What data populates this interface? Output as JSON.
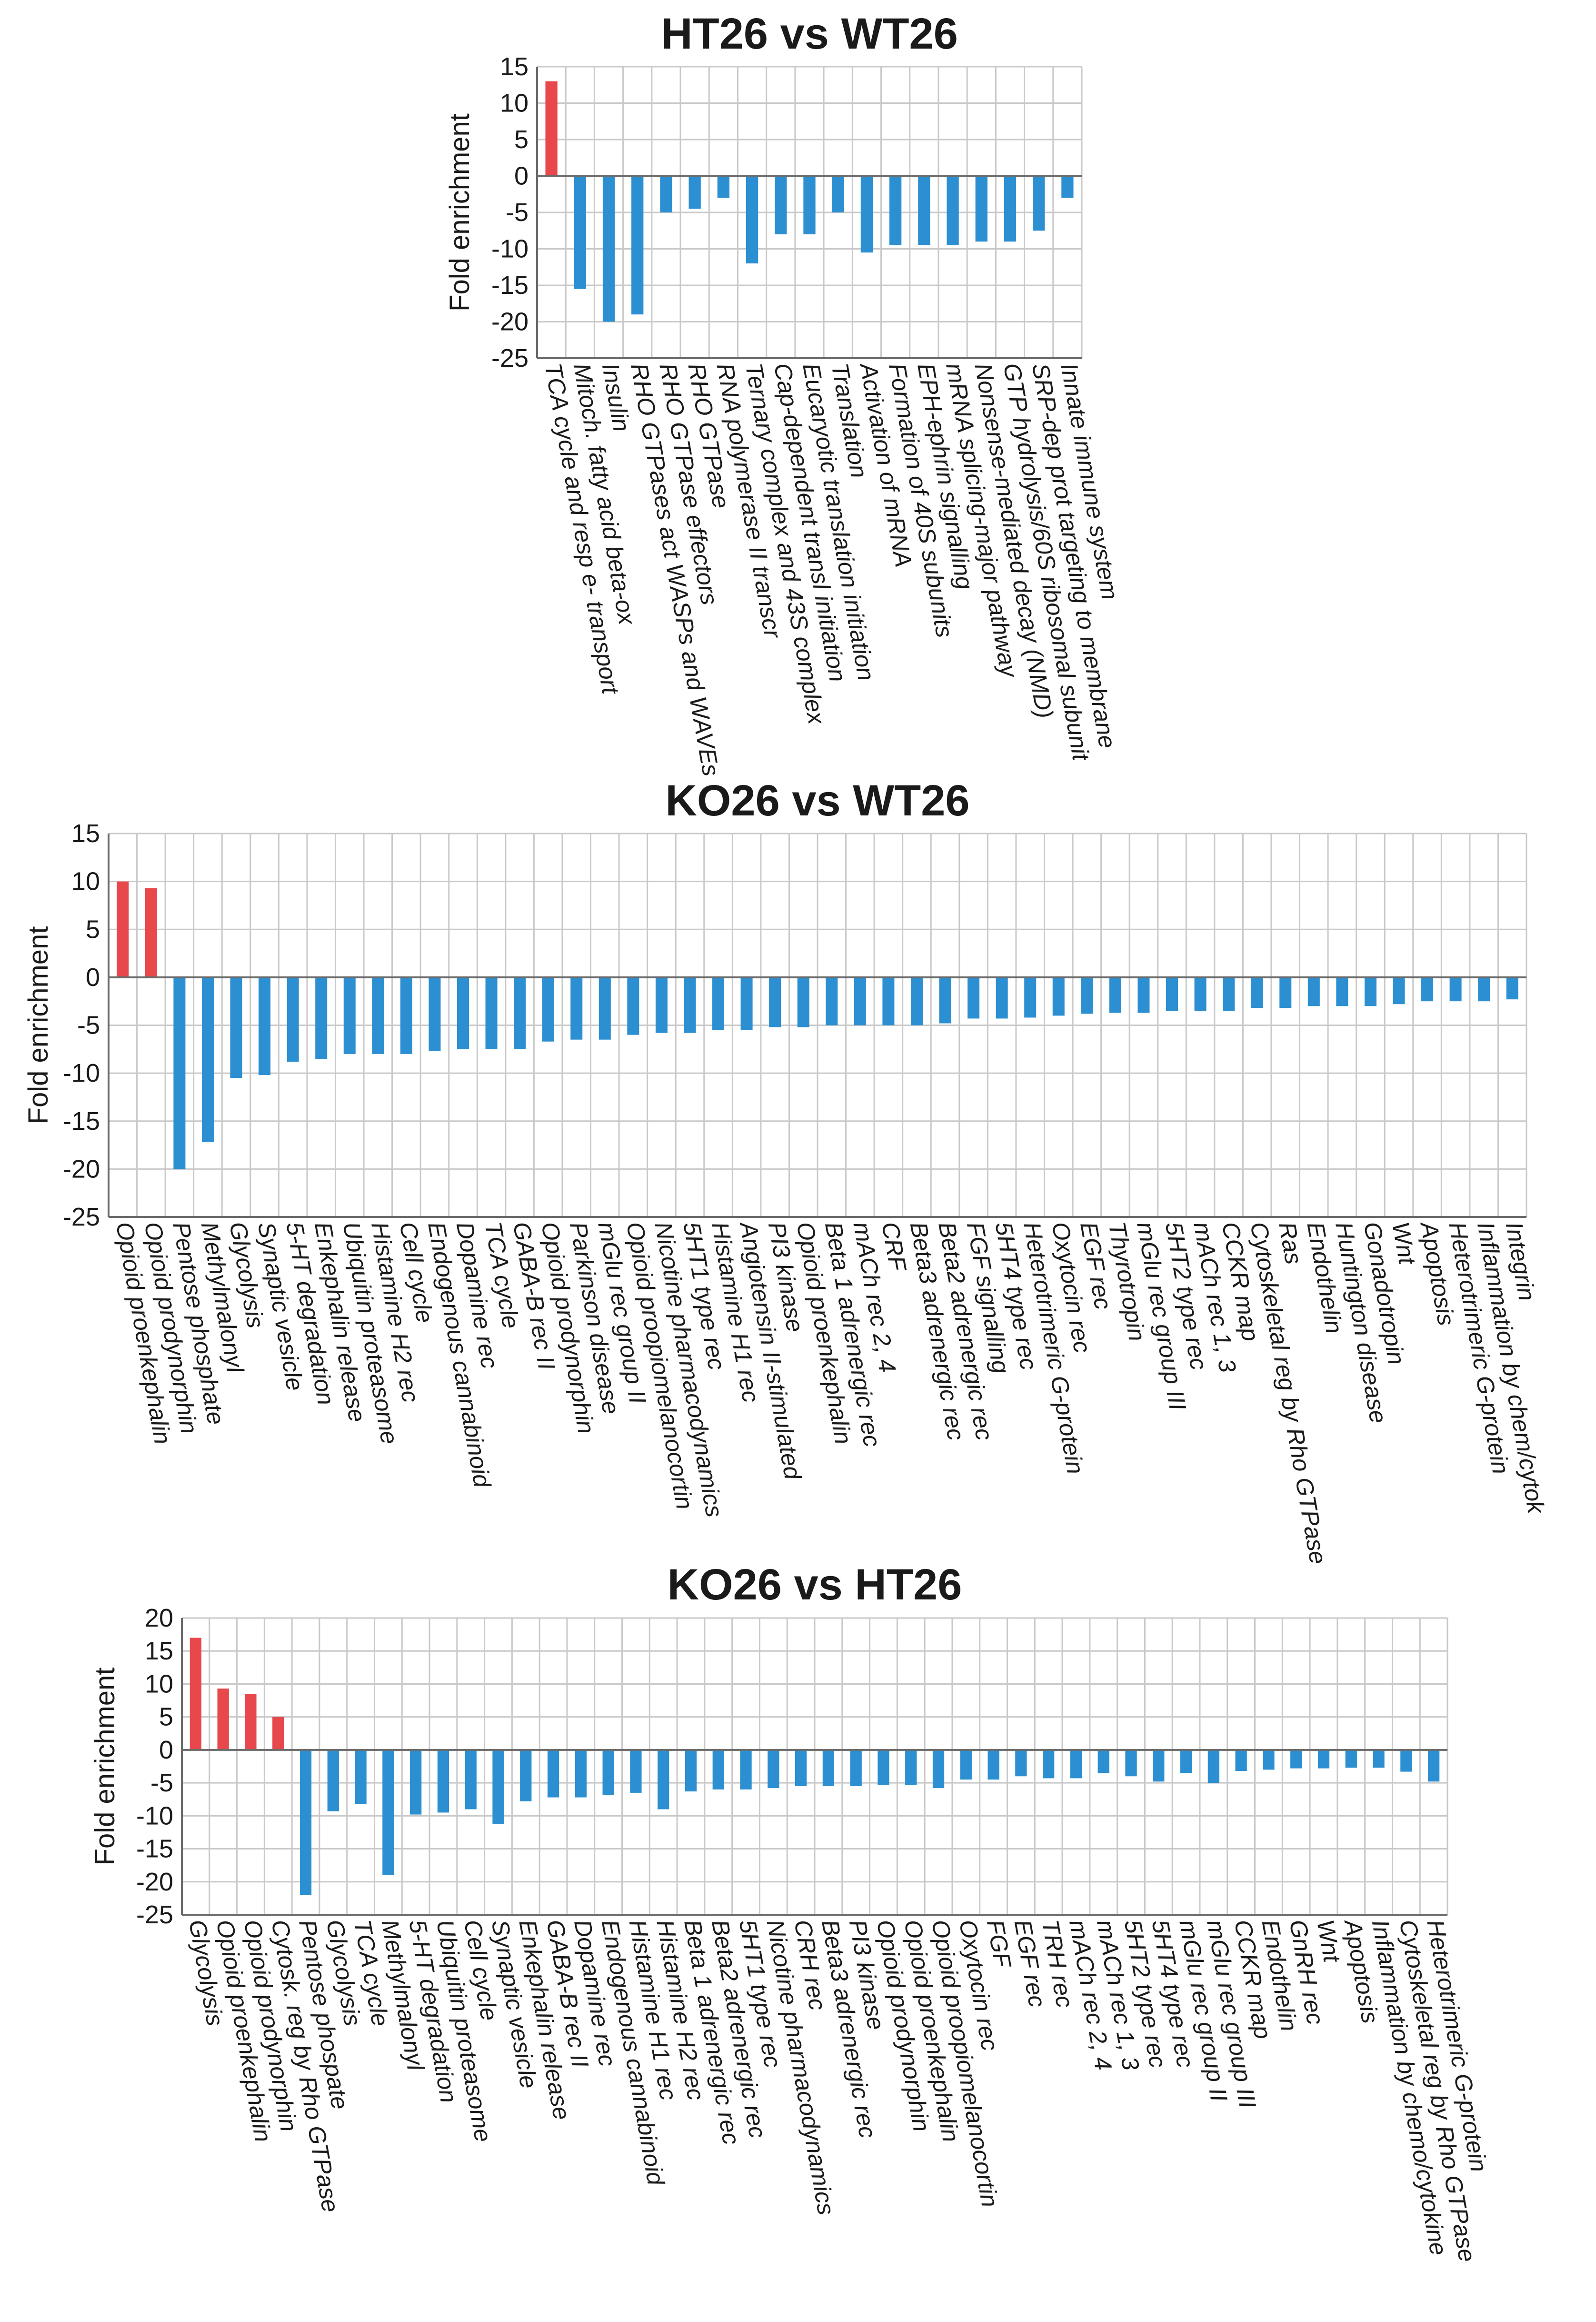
{
  "chart_data": [
    {
      "type": "bar",
      "title": "HT26 vs WT26",
      "ylabel": "Fold enrichment",
      "xlabel": "",
      "ylim": [
        -25,
        15
      ],
      "yticks": [
        15,
        10,
        5,
        0,
        -5,
        -10,
        -15,
        -20,
        -25
      ],
      "categories": [
        "TCA cycle and resp e- transport",
        "Mitoch. fatty acid beta-ox",
        "Insulin",
        "RHO GTPases act WASPs and WAVEs",
        "RHO GTPase effectors",
        "RHO GTPase",
        "RNA polymerase II transcr",
        "Ternary complex and 43S complex",
        "Cap-dependent transl initiation",
        "Eucaryotic translation initiation",
        "Translation",
        "Activation of mRNA",
        "Formation of 40S subunits",
        "EPH-ephrin signalling",
        "mRNA splicing-major pathway",
        "Nonsense-mediated decay (NMD)",
        "GTP hydrolysis/60S ribosomal subunit",
        "SRP-dep prot targeting to membrane",
        "Innate immune system"
      ],
      "values": [
        13,
        -15.5,
        -20,
        -19,
        -5,
        -4.5,
        -3,
        -12,
        -8,
        -8,
        -5,
        -10.5,
        -9.5,
        -9.5,
        -9.5,
        -9,
        -9,
        -7.5,
        -3
      ],
      "colors": {
        "positive": "#e8474c",
        "negative": "#2b8fd1"
      }
    },
    {
      "type": "bar",
      "title": "KO26 vs WT26",
      "ylabel": "Fold enrichment",
      "xlabel": "",
      "ylim": [
        -25,
        15
      ],
      "yticks": [
        15,
        10,
        5,
        0,
        -5,
        -10,
        -15,
        -20,
        -25
      ],
      "categories": [
        "Opioid proenkephalin",
        "Opioid prodynorphin",
        "Pentose phosphate",
        "Methylmalonyl",
        "Glycolysis",
        "Synaptic vesicle",
        "5-HT degradation",
        "Enkephalin release",
        "Ubiquitin proteasome",
        "Histamine H2 rec",
        "Cell cycle",
        "Endogenous cannabinoid",
        "Dopamine rec",
        "TCA cycle",
        "GABA-B rec II",
        "Opioid prodynorphin",
        "Parkinson disease",
        "mGlu rec group II",
        "Opioid proopiomelanocortin",
        "Nicotine pharmacodynamics",
        "5HT1 type rec",
        "Histamine H1 rec",
        "Angiotensin II-stimulated",
        "PI3 kinase",
        "Opioid proenkephalin",
        "Beta 1 adrenergic rec",
        "mACh rec 2, 4",
        "CRF",
        "Beta3 adrenergic rec",
        "Beta2 adrenergic rec",
        "FGF signalling",
        "5HT4 type rec",
        "Heterotrimeric G-protein",
        "Oxytocin rec",
        "EGF rec",
        "Thyrotropin",
        "mGlu rec group III",
        "5HT2 type rec",
        "mACh rec 1, 3",
        "CCKR map",
        "Cytoskeletal reg by Rho GTPase",
        "Ras",
        "Endothelin",
        "Huntington disease",
        "Gonadotropin",
        "Wnt",
        "Apoptosis",
        "Heterotrimeric G-protein",
        "Inflammation by chem/cytok",
        "Integrin"
      ],
      "values": [
        10,
        9.3,
        -20,
        -17.2,
        -10.5,
        -10.2,
        -8.8,
        -8.5,
        -8,
        -8,
        -8,
        -7.7,
        -7.5,
        -7.5,
        -7.5,
        -6.7,
        -6.5,
        -6.5,
        -6,
        -5.8,
        -5.8,
        -5.5,
        -5.5,
        -5.2,
        -5.2,
        -5,
        -5,
        -5,
        -5,
        -4.8,
        -4.3,
        -4.3,
        -4.2,
        -4,
        -3.8,
        -3.7,
        -3.7,
        -3.5,
        -3.5,
        -3.5,
        -3.2,
        -3.2,
        -3,
        -3,
        -3,
        -2.8,
        -2.5,
        -2.5,
        -2.5,
        -2.3
      ],
      "colors": {
        "positive": "#e8474c",
        "negative": "#2b8fd1"
      }
    },
    {
      "type": "bar",
      "title": "KO26 vs HT26",
      "ylabel": "Fold enrichment",
      "xlabel": "",
      "ylim": [
        -25,
        20
      ],
      "yticks": [
        20,
        15,
        10,
        5,
        0,
        -5,
        -10,
        -15,
        -20,
        -25
      ],
      "categories": [
        "Glycolysis",
        "Opioid proenkephalin",
        "Opioid prodynorphin",
        "Cytosk. reg by Rho GTPase",
        "Pentose phospate",
        "Glycolysis",
        "TCA cycle",
        "Methylmalonyl",
        "5-HT degradation",
        "Ubiquitin proteasome",
        "Cell cycle",
        "Synaptic vesicle",
        "Enkephalin release",
        "GABA-B rec II",
        "Dopamine rec",
        "Endogenous cannabinoid",
        "Histamine H1 rec",
        "Histamine H2 rec",
        "Beta 1 adrenergic rec",
        "Beta2 adrenergic rec",
        "5HT1 type rec",
        "Nicotine pharmacodynamics",
        "CRH rec",
        "Beta3 adrenergic rec",
        "PI3 kinase",
        "Opioid prodynorphin",
        "Opioid proenkephalin",
        "Opioid proopiomelanocortin",
        "Oxytocin rec",
        "FGF",
        "EGF rec",
        "TRH rec",
        "mACh rec 2, 4",
        "mACh rec 1, 3",
        "5HT2 type rec",
        "5HT4 type rec",
        "mGlu rec group II",
        "mGlu rec group III",
        "CCKR map",
        "Endothelin",
        "GnRH rec",
        "Wnt",
        "Apoptosis",
        "Inflammation by chemo/cytokine",
        "Cytoskeletal reg by Rho GTPase",
        "Heterotrimeric G-protein"
      ],
      "values": [
        17,
        9.3,
        8.5,
        5,
        -22,
        -9.3,
        -8.2,
        -19,
        -9.8,
        -9.5,
        -9,
        -11.2,
        -7.8,
        -7.2,
        -7.2,
        -6.8,
        -6.5,
        -9,
        -6.3,
        -6,
        -6,
        -5.8,
        -5.5,
        -5.5,
        -5.5,
        -5.3,
        -5.3,
        -5.8,
        -4.5,
        -4.5,
        -4,
        -4.3,
        -4.3,
        -3.5,
        -4,
        -4.8,
        -3.5,
        -5,
        -3.2,
        -3,
        -2.8,
        -2.8,
        -2.7,
        -2.7,
        -3.3,
        -4.8
      ],
      "colors": {
        "positive": "#e8474c",
        "negative": "#2b8fd1"
      }
    }
  ]
}
